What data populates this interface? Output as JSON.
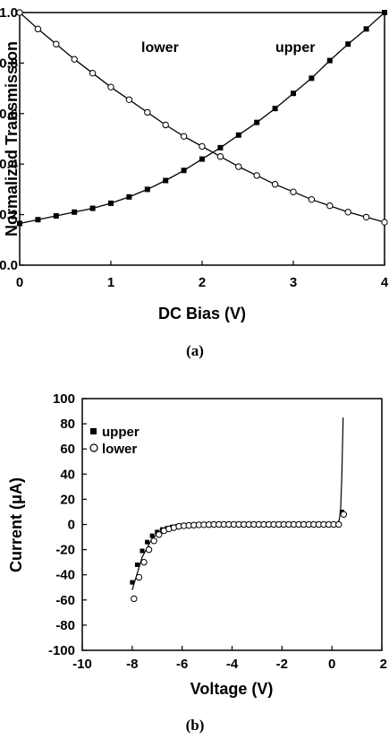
{
  "chart_data": [
    {
      "type": "line",
      "panel_label": "(a)",
      "xlabel": "DC Bias (V)",
      "ylabel": "Normalized Transmission",
      "xlim": [
        0,
        4
      ],
      "ylim": [
        0,
        1
      ],
      "xticks": [
        "0",
        "1",
        "2",
        "3",
        "4"
      ],
      "yticks": [
        "0.0",
        "0.2",
        "0.4",
        "0.6",
        "0.8",
        "1.0"
      ],
      "annotations": [
        "lower",
        "upper"
      ],
      "x": [
        0,
        0.2,
        0.4,
        0.6,
        0.8,
        1.0,
        1.2,
        1.4,
        1.6,
        1.8,
        2.0,
        2.2,
        2.4,
        2.6,
        2.8,
        3.0,
        3.2,
        3.4,
        3.6,
        3.8,
        4.0
      ],
      "series": [
        {
          "name": "lower",
          "marker": "open-circle",
          "values": [
            1.0,
            0.935,
            0.875,
            0.815,
            0.76,
            0.705,
            0.655,
            0.605,
            0.555,
            0.51,
            0.47,
            0.43,
            0.39,
            0.355,
            0.32,
            0.29,
            0.26,
            0.235,
            0.21,
            0.19,
            0.17
          ]
        },
        {
          "name": "upper",
          "marker": "filled-square",
          "values": [
            0.165,
            0.18,
            0.195,
            0.21,
            0.225,
            0.245,
            0.27,
            0.3,
            0.335,
            0.375,
            0.42,
            0.465,
            0.515,
            0.565,
            0.62,
            0.68,
            0.74,
            0.81,
            0.875,
            0.935,
            1.0
          ]
        }
      ]
    },
    {
      "type": "scatter",
      "panel_label": "(b)",
      "xlabel": "Voltage (V)",
      "ylabel": "Current (μA)",
      "xlim": [
        -10,
        2
      ],
      "ylim": [
        -100,
        100
      ],
      "xticks": [
        "-10",
        "-8",
        "-6",
        "-4",
        "-2",
        "0",
        "2"
      ],
      "yticks": [
        "-100",
        "-80",
        "-60",
        "-40",
        "-20",
        "0",
        "20",
        "40",
        "60",
        "80",
        "100"
      ],
      "legend_position": "top-left",
      "series": [
        {
          "name": "upper",
          "marker": "filled-square",
          "x": [
            -8.0,
            -7.8,
            -7.6,
            -7.4,
            -7.2,
            -7.0,
            -6.8,
            -6.6,
            -6.4,
            -6.2,
            -6.0,
            -5.8,
            -5.6,
            -5.4,
            -5.2,
            -5.0,
            -4.8,
            -4.6,
            -4.4,
            -4.2,
            -4.0,
            -3.8,
            -3.6,
            -3.4,
            -3.2,
            -3.0,
            -2.8,
            -2.6,
            -2.4,
            -2.2,
            -2.0,
            -1.8,
            -1.6,
            -1.4,
            -1.2,
            -1.0,
            -0.8,
            -0.6,
            -0.4,
            -0.2,
            0.0,
            0.2,
            0.4
          ],
          "y": [
            -46,
            -32,
            -21,
            -14,
            -9,
            -6,
            -4,
            -3,
            -2,
            -1.5,
            -1,
            -0.8,
            -0.5,
            -0.3,
            -0.2,
            -0.1,
            0,
            0,
            0,
            0,
            0,
            0,
            0,
            0,
            0,
            0,
            0,
            0,
            0,
            0,
            0,
            0,
            0,
            0,
            0,
            0,
            0,
            0,
            0,
            0,
            0,
            0,
            10
          ]
        },
        {
          "name": "lower",
          "marker": "open-circle",
          "x": [
            -8.0,
            -7.8,
            -7.6,
            -7.4,
            -7.2,
            -7.0,
            -6.8,
            -6.6,
            -6.4,
            -6.2,
            -6.0,
            -5.8,
            -5.6,
            -5.4,
            -5.2,
            -5.0,
            -4.8,
            -4.6,
            -4.4,
            -4.2,
            -4.0,
            -3.8,
            -3.6,
            -3.4,
            -3.2,
            -3.0,
            -2.8,
            -2.6,
            -2.4,
            -2.2,
            -2.0,
            -1.8,
            -1.6,
            -1.4,
            -1.2,
            -1.0,
            -0.8,
            -0.6,
            -0.4,
            -0.2,
            0.0,
            0.2,
            0.4
          ],
          "y": [
            -59,
            -42,
            -30,
            -20,
            -13,
            -8,
            -5,
            -3.5,
            -2.5,
            -1.5,
            -1,
            -0.8,
            -0.5,
            -0.3,
            -0.2,
            -0.1,
            0,
            0,
            0,
            0,
            0,
            0,
            0,
            0,
            0,
            0,
            0,
            0,
            0,
            0,
            0,
            0,
            0,
            0,
            0,
            0,
            0,
            0,
            0,
            0,
            0,
            0,
            8
          ]
        }
      ],
      "curve_x": [
        -8.0,
        -7.6,
        -7.2,
        -6.8,
        -6.4,
        -6.0,
        -5.5,
        -5.0,
        0.0,
        0.2,
        0.3,
        0.35,
        0.4,
        0.45
      ],
      "curve_y": [
        -52,
        -26,
        -11,
        -4.5,
        -2,
        -1,
        -0.4,
        0,
        0,
        0.5,
        4,
        12,
        40,
        85
      ]
    }
  ]
}
